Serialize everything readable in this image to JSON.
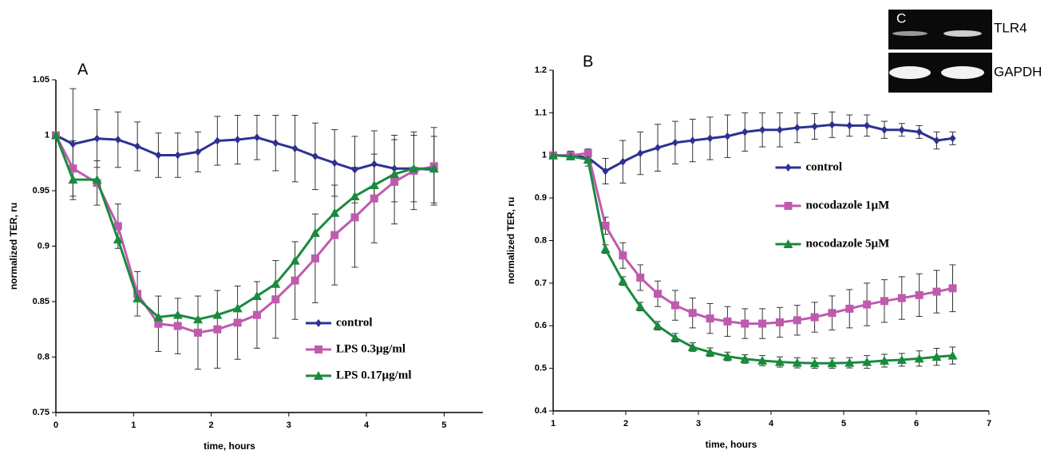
{
  "chart_data": [
    {
      "type": "line",
      "panel": "A",
      "xlabel": "time, hours",
      "ylabel": "normalized TER, ru",
      "x": [
        0,
        0.22,
        0.53,
        0.8,
        1.05,
        1.32,
        1.57,
        1.83,
        2.08,
        2.34,
        2.59,
        2.83,
        3.08,
        3.34,
        3.59,
        3.85,
        4.1,
        4.36,
        4.61,
        4.87
      ],
      "xlim": [
        0,
        5.5
      ],
      "xticks": [
        0,
        1,
        2,
        3,
        4,
        5
      ],
      "ylim": [
        0.75,
        1.05
      ],
      "yticks": [
        0.75,
        0.8,
        0.85,
        0.9,
        0.95,
        1,
        1.05
      ],
      "legend": "lower right",
      "series": [
        {
          "name": "control",
          "color": "#2e3192",
          "marker": "diamond",
          "values": [
            1,
            0.992,
            0.997,
            0.996,
            0.99,
            0.982,
            0.982,
            0.985,
            0.995,
            0.996,
            0.998,
            0.993,
            0.988,
            0.981,
            0.975,
            0.969,
            0.974,
            0.97,
            0.97,
            0.969
          ],
          "errors": [
            0,
            0.05,
            0.026,
            0.025,
            0.022,
            0.02,
            0.02,
            0.018,
            0.022,
            0.022,
            0.02,
            0.025,
            0.03,
            0.03,
            0.03,
            0.03,
            0.03,
            0.03,
            0.03,
            0.03
          ]
        },
        {
          "name": "LPS 0.3µg/ml",
          "color": "#c05aae",
          "marker": "square",
          "values": [
            1,
            0.97,
            0.957,
            0.918,
            0.857,
            0.83,
            0.828,
            0.822,
            0.825,
            0.831,
            0.838,
            0.852,
            0.869,
            0.889,
            0.91,
            0.926,
            0.943,
            0.958,
            0.968,
            0.972
          ],
          "errors": [
            0,
            0.025,
            0.02,
            0.02,
            0.02,
            0.025,
            0.025,
            0.033,
            0.035,
            0.033,
            0.03,
            0.035,
            0.035,
            0.04,
            0.045,
            0.045,
            0.04,
            0.038,
            0.035,
            0.035
          ]
        },
        {
          "name": "LPS 0.17µg/ml",
          "color": "#1a8a3e",
          "marker": "triangle",
          "values": [
            1,
            0.96,
            0.96,
            0.906,
            0.853,
            0.836,
            0.838,
            0.834,
            0.838,
            0.844,
            0.855,
            0.866,
            0.887,
            0.912,
            0.93,
            0.945,
            0.955,
            0.965,
            0.97,
            0.97
          ]
        }
      ]
    },
    {
      "type": "line",
      "panel": "B",
      "xlabel": "time, hours",
      "ylabel": "normalized TER, ru",
      "x": [
        1,
        1.24,
        1.48,
        1.72,
        1.96,
        2.2,
        2.44,
        2.68,
        2.92,
        3.16,
        3.4,
        3.64,
        3.88,
        4.12,
        4.36,
        4.6,
        4.84,
        5.08,
        5.32,
        5.56,
        5.8,
        6.04,
        6.28,
        6.5
      ],
      "xlim": [
        1,
        7
      ],
      "xticks": [
        1,
        2,
        3,
        4,
        5,
        6,
        7
      ],
      "ylim": [
        0.4,
        1.2
      ],
      "yticks": [
        0.4,
        0.5,
        0.6,
        0.7,
        0.8,
        0.9,
        1,
        1.1,
        1.2
      ],
      "legend": "center right",
      "series": [
        {
          "name": "control",
          "color": "#2e3192",
          "marker": "diamond",
          "values": [
            1,
            1,
            0.995,
            0.963,
            0.985,
            1.005,
            1.018,
            1.03,
            1.035,
            1.04,
            1.045,
            1.055,
            1.06,
            1.06,
            1.065,
            1.068,
            1.072,
            1.07,
            1.07,
            1.06,
            1.06,
            1.055,
            1.035,
            1.04
          ],
          "errors": [
            0,
            0.01,
            0.02,
            0.03,
            0.05,
            0.05,
            0.055,
            0.05,
            0.05,
            0.05,
            0.05,
            0.045,
            0.04,
            0.04,
            0.035,
            0.03,
            0.03,
            0.025,
            0.025,
            0.02,
            0.015,
            0.015,
            0.02,
            0.015
          ]
        },
        {
          "name": "nocodazole 1µM",
          "color": "#c05aae",
          "marker": "square",
          "values": [
            1,
            1,
            1.005,
            0.835,
            0.765,
            0.713,
            0.675,
            0.648,
            0.63,
            0.617,
            0.61,
            0.605,
            0.605,
            0.608,
            0.613,
            0.62,
            0.63,
            0.64,
            0.65,
            0.658,
            0.665,
            0.672,
            0.68,
            0.688
          ],
          "errors": [
            0,
            0,
            0,
            0.02,
            0.03,
            0.03,
            0.03,
            0.035,
            0.035,
            0.035,
            0.035,
            0.035,
            0.035,
            0.035,
            0.035,
            0.035,
            0.04,
            0.045,
            0.05,
            0.05,
            0.05,
            0.05,
            0.05,
            0.055
          ]
        },
        {
          "name": "nocodazole 5µM",
          "color": "#1a8a3e",
          "marker": "triangle",
          "values": [
            1,
            0.998,
            0.99,
            0.78,
            0.705,
            0.645,
            0.6,
            0.572,
            0.55,
            0.538,
            0.528,
            0.522,
            0.518,
            0.515,
            0.513,
            0.512,
            0.512,
            0.513,
            0.515,
            0.518,
            0.52,
            0.523,
            0.527,
            0.53
          ],
          "errors": [
            0,
            0,
            0,
            0.01,
            0.01,
            0.01,
            0.01,
            0.01,
            0.01,
            0.01,
            0.01,
            0.01,
            0.012,
            0.012,
            0.012,
            0.012,
            0.012,
            0.012,
            0.015,
            0.015,
            0.015,
            0.018,
            0.02,
            0.02
          ]
        }
      ]
    }
  ],
  "gel": {
    "panel": "C",
    "rows": [
      "TLR4",
      "GAPDH"
    ]
  }
}
